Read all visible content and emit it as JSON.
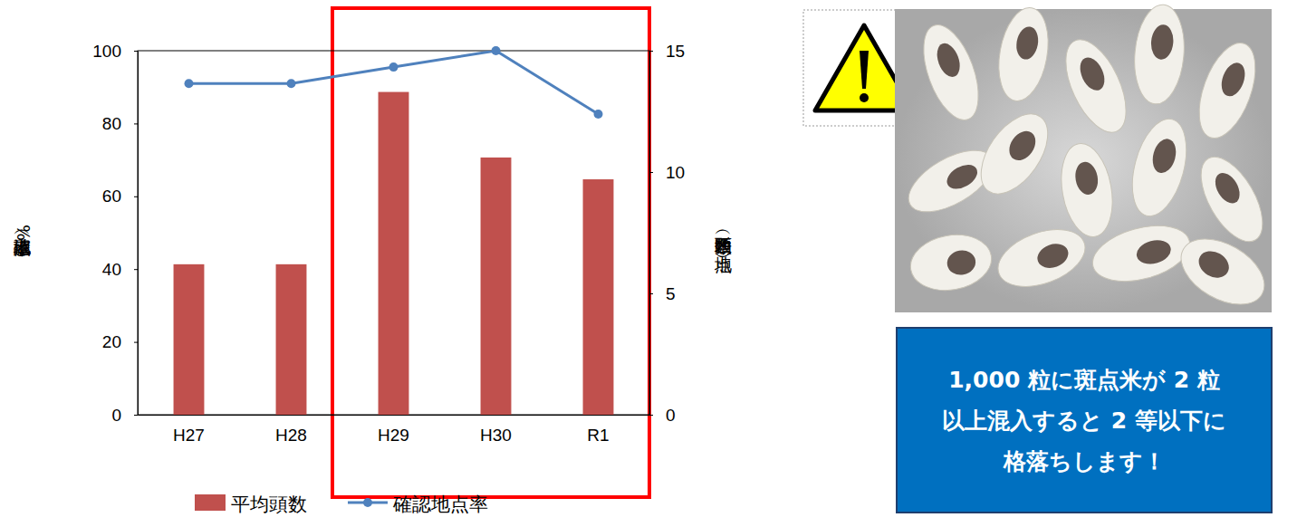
{
  "chart_data": {
    "type": "bar",
    "categories": [
      "H27",
      "H28",
      "H29",
      "H30",
      "R1"
    ],
    "y_label": "確認地点率（%）",
    "y2_label": "平均頭数（匹／地点）",
    "ylim": [
      0,
      100
    ],
    "yticks": [
      0,
      20,
      40,
      60,
      80,
      100
    ],
    "y2lim": [
      0,
      15
    ],
    "y2ticks": [
      0,
      5,
      10,
      15
    ],
    "legend": "bottom",
    "series": [
      {
        "name": "平均頭数",
        "type": "bar",
        "color": "#c0504d",
        "axis": "y2",
        "values": [
          6.2,
          6.2,
          13.3,
          10.6,
          9.7
        ]
      },
      {
        "name": "確認地点率",
        "type": "line",
        "color": "#4f81bd",
        "marker": "circle",
        "axis": "y",
        "values": [
          91,
          91,
          95.5,
          100,
          82.6
        ]
      }
    ]
  },
  "callout": {
    "lines": [
      "1,000 粒に斑点米が 2 粒",
      "以上混入すると 2 等以下に",
      "格落ちします！"
    ]
  }
}
